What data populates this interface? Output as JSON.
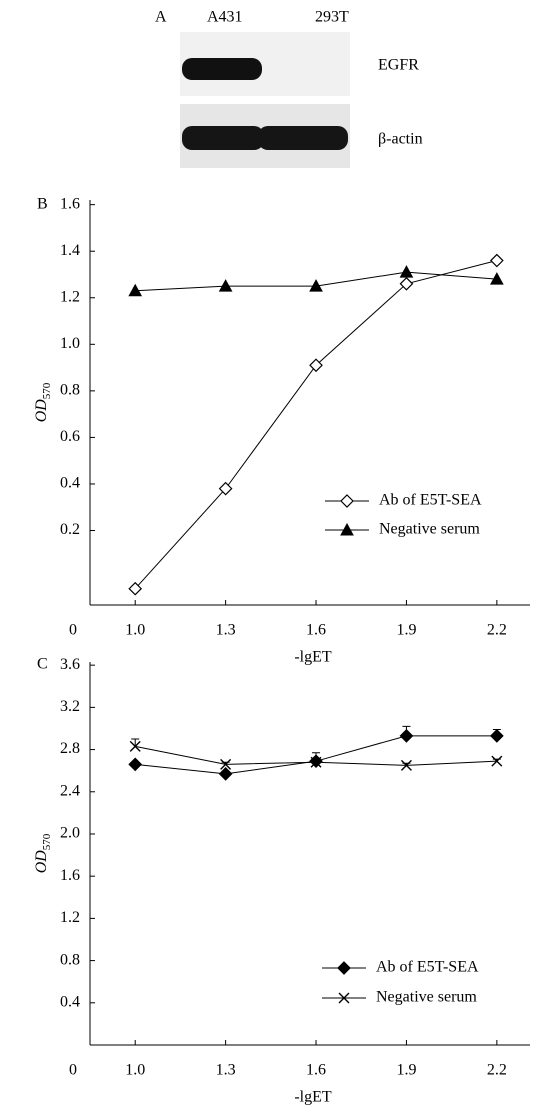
{
  "blot": {
    "panel": "A",
    "lanes": [
      "A431",
      "293T"
    ],
    "rows": [
      "EGFR",
      "β-actin"
    ]
  },
  "chart_data": [
    {
      "type": "line",
      "panel": "B",
      "x_label": "-lgET",
      "origin_label": "0",
      "y_label": {
        "text": "OD",
        "subscript": "570"
      },
      "x": [
        1.0,
        1.3,
        1.6,
        1.9,
        2.2
      ],
      "xlim": [
        0.85,
        2.31
      ],
      "xticks": [
        {
          "value": 1.0,
          "label": "1.0"
        },
        1.3,
        1.6,
        1.9,
        2.2
      ],
      "ylim": [
        -0.12,
        1.62
      ],
      "yticks": [
        0.2,
        0.4,
        0.6,
        0.8,
        {
          "value": 1.0,
          "label": "1.0"
        },
        1.2,
        1.4,
        1.6
      ],
      "legend": "lower right",
      "series": [
        {
          "name": "Ab of E5T-SEA",
          "color": "#000000",
          "marker": "open-diamond",
          "values": [
            -0.05,
            0.38,
            0.91,
            1.26,
            1.36
          ]
        },
        {
          "name": "Negative serum",
          "color": "#000000",
          "marker": "filled-triangle",
          "values": [
            1.23,
            1.25,
            1.25,
            1.31,
            1.28
          ]
        }
      ]
    },
    {
      "type": "line",
      "panel": "C",
      "x_label": "-lgET",
      "origin_label": "0",
      "y_label": {
        "text": "OD",
        "subscript": "570"
      },
      "x": [
        1.0,
        1.3,
        1.6,
        1.9,
        2.2
      ],
      "xlim": [
        0.85,
        2.31
      ],
      "xticks": [
        {
          "value": 1.0,
          "label": "1.0"
        },
        1.3,
        1.6,
        1.9,
        2.2
      ],
      "ylim": [
        0,
        3.63
      ],
      "yticks": [
        0.4,
        0.8,
        1.2,
        1.6,
        {
          "value": 2.0,
          "label": "2.0"
        },
        2.4,
        2.8,
        3.2,
        3.6
      ],
      "legend": "lower right",
      "series": [
        {
          "name": "Ab of E5T-SEA",
          "color": "#000000",
          "marker": "filled-diamond",
          "values": [
            2.66,
            2.57,
            2.69,
            2.93,
            2.93
          ],
          "errors": [
            0.02,
            0.02,
            0.08,
            0.09,
            0.06
          ]
        },
        {
          "name": "Negative serum",
          "color": "#000000",
          "marker": "cross",
          "values": [
            2.83,
            2.66,
            2.68,
            2.65,
            2.69
          ],
          "errors": [
            0.07,
            0.02,
            0.02,
            0.02,
            0.02
          ]
        }
      ]
    }
  ]
}
